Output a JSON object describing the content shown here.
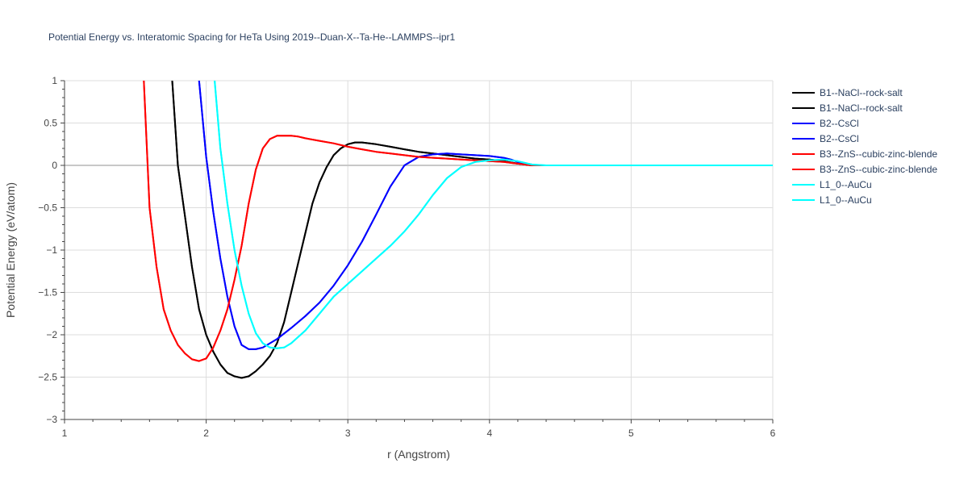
{
  "chart_data": {
    "type": "line",
    "title": "Potential Energy vs. Interatomic Spacing for HeTa Using 2019--Duan-X--Ta-He--LAMMPS--ipr1",
    "xlabel": "r (Angstrom)",
    "ylabel": "Potential Energy (eV/atom)",
    "xlim": [
      1,
      6
    ],
    "ylim": [
      -3,
      1
    ],
    "x_ticks": [
      1,
      2,
      3,
      4,
      5,
      6
    ],
    "x_tick_labels": [
      "1",
      "2",
      "3",
      "4",
      "5",
      "6"
    ],
    "y_ticks": [
      -3,
      -2.5,
      -2,
      -1.5,
      -1,
      -0.5,
      0,
      0.5,
      1
    ],
    "y_tick_labels": [
      "−3",
      "−2.5",
      "−2",
      "−1.5",
      "−1",
      "−0.5",
      "0",
      "0.5",
      "1"
    ],
    "grid": true,
    "legend_position": "top-right",
    "series": [
      {
        "name": "B1--NaCl--rock-salt",
        "color": "#000000",
        "x": [
          1.76,
          1.8,
          1.85,
          1.9,
          1.95,
          2.0,
          2.05,
          2.1,
          2.15,
          2.2,
          2.25,
          2.3,
          2.35,
          2.4,
          2.45,
          2.5,
          2.55,
          2.6,
          2.65,
          2.7,
          2.75,
          2.8,
          2.85,
          2.9,
          2.95,
          3.0,
          3.05,
          3.1,
          3.2,
          3.3,
          3.4,
          3.5,
          3.6,
          3.7,
          3.8,
          3.9,
          4.0,
          4.1,
          4.2,
          4.3,
          4.4,
          5.0,
          6.0
        ],
        "y": [
          1.0,
          0.0,
          -0.6,
          -1.2,
          -1.7,
          -2.0,
          -2.2,
          -2.35,
          -2.45,
          -2.49,
          -2.51,
          -2.49,
          -2.43,
          -2.35,
          -2.25,
          -2.1,
          -1.85,
          -1.5,
          -1.15,
          -0.8,
          -0.45,
          -0.2,
          -0.02,
          0.12,
          0.2,
          0.25,
          0.27,
          0.27,
          0.25,
          0.22,
          0.19,
          0.16,
          0.14,
          0.12,
          0.1,
          0.08,
          0.07,
          0.05,
          0.02,
          0.0,
          0.0,
          0.0,
          0.0
        ]
      },
      {
        "name": "B1--NaCl--rock-salt",
        "color": "#000000",
        "x": [
          1.76,
          1.8,
          1.85,
          1.9,
          1.95,
          2.0,
          2.05,
          2.1,
          2.15,
          2.2,
          2.25,
          2.3,
          2.35,
          2.4,
          2.45,
          2.5,
          2.55,
          2.6,
          2.65,
          2.7,
          2.75,
          2.8,
          2.85,
          2.9,
          2.95,
          3.0,
          3.05,
          3.1,
          3.2,
          3.3,
          3.4,
          3.5,
          3.6,
          3.7,
          3.8,
          3.9,
          4.0,
          4.1,
          4.2,
          4.3,
          4.4,
          5.0,
          6.0
        ],
        "y": [
          1.0,
          0.0,
          -0.6,
          -1.2,
          -1.7,
          -2.0,
          -2.2,
          -2.35,
          -2.45,
          -2.49,
          -2.51,
          -2.49,
          -2.43,
          -2.35,
          -2.25,
          -2.1,
          -1.85,
          -1.5,
          -1.15,
          -0.8,
          -0.45,
          -0.2,
          -0.02,
          0.12,
          0.2,
          0.25,
          0.27,
          0.27,
          0.25,
          0.22,
          0.19,
          0.16,
          0.14,
          0.12,
          0.1,
          0.08,
          0.07,
          0.05,
          0.02,
          0.0,
          0.0,
          0.0,
          0.0
        ]
      },
      {
        "name": "B2--CsCl",
        "color": "#0000ff",
        "x": [
          1.95,
          2.0,
          2.05,
          2.1,
          2.15,
          2.2,
          2.25,
          2.3,
          2.35,
          2.4,
          2.5,
          2.6,
          2.7,
          2.8,
          2.9,
          3.0,
          3.1,
          3.2,
          3.3,
          3.4,
          3.5,
          3.6,
          3.7,
          3.8,
          3.9,
          4.0,
          4.1,
          4.15,
          4.2,
          4.25,
          4.3,
          4.35,
          4.4,
          5.0,
          6.0
        ],
        "y": [
          1.0,
          0.1,
          -0.55,
          -1.1,
          -1.55,
          -1.9,
          -2.12,
          -2.17,
          -2.17,
          -2.15,
          -2.05,
          -1.92,
          -1.78,
          -1.62,
          -1.42,
          -1.18,
          -0.9,
          -0.58,
          -0.25,
          0.0,
          0.1,
          0.13,
          0.14,
          0.13,
          0.12,
          0.11,
          0.09,
          0.07,
          0.04,
          0.02,
          0.01,
          0.0,
          0.0,
          0.0,
          0.0
        ]
      },
      {
        "name": "B2--CsCl",
        "color": "#0000ff",
        "x": [
          1.95,
          2.0,
          2.05,
          2.1,
          2.15,
          2.2,
          2.25,
          2.3,
          2.35,
          2.4,
          2.5,
          2.6,
          2.7,
          2.8,
          2.9,
          3.0,
          3.1,
          3.2,
          3.3,
          3.4,
          3.5,
          3.6,
          3.7,
          3.8,
          3.9,
          4.0,
          4.1,
          4.15,
          4.2,
          4.25,
          4.3,
          4.35,
          4.4,
          5.0,
          6.0
        ],
        "y": [
          1.0,
          0.1,
          -0.55,
          -1.1,
          -1.55,
          -1.9,
          -2.12,
          -2.17,
          -2.17,
          -2.15,
          -2.05,
          -1.92,
          -1.78,
          -1.62,
          -1.42,
          -1.18,
          -0.9,
          -0.58,
          -0.25,
          0.0,
          0.1,
          0.13,
          0.14,
          0.13,
          0.12,
          0.11,
          0.09,
          0.07,
          0.04,
          0.02,
          0.01,
          0.0,
          0.0,
          0.0,
          0.0
        ]
      },
      {
        "name": "B3--ZnS--cubic-zinc-blende",
        "color": "#ff0000",
        "x": [
          1.56,
          1.6,
          1.65,
          1.7,
          1.75,
          1.8,
          1.85,
          1.9,
          1.95,
          2.0,
          2.05,
          2.1,
          2.15,
          2.2,
          2.25,
          2.3,
          2.35,
          2.4,
          2.45,
          2.5,
          2.55,
          2.6,
          2.65,
          2.7,
          2.8,
          2.9,
          3.0,
          3.1,
          3.2,
          3.3,
          3.4,
          3.5,
          3.6,
          3.7,
          3.8,
          3.9,
          4.0,
          4.1,
          4.2,
          4.3,
          4.4,
          5.0,
          6.0
        ],
        "y": [
          1.0,
          -0.5,
          -1.2,
          -1.7,
          -1.95,
          -2.12,
          -2.22,
          -2.29,
          -2.31,
          -2.28,
          -2.15,
          -1.95,
          -1.7,
          -1.35,
          -0.95,
          -0.45,
          -0.05,
          0.2,
          0.31,
          0.35,
          0.35,
          0.35,
          0.34,
          0.32,
          0.29,
          0.26,
          0.22,
          0.19,
          0.16,
          0.14,
          0.12,
          0.1,
          0.09,
          0.08,
          0.07,
          0.06,
          0.05,
          0.04,
          0.02,
          0.0,
          0.0,
          0.0,
          0.0
        ]
      },
      {
        "name": "B3--ZnS--cubic-zinc-blende",
        "color": "#ff0000",
        "x": [
          1.56,
          1.6,
          1.65,
          1.7,
          1.75,
          1.8,
          1.85,
          1.9,
          1.95,
          2.0,
          2.05,
          2.1,
          2.15,
          2.2,
          2.25,
          2.3,
          2.35,
          2.4,
          2.45,
          2.5,
          2.55,
          2.6,
          2.65,
          2.7,
          2.8,
          2.9,
          3.0,
          3.1,
          3.2,
          3.3,
          3.4,
          3.5,
          3.6,
          3.7,
          3.8,
          3.9,
          4.0,
          4.1,
          4.2,
          4.3,
          4.4,
          5.0,
          6.0
        ],
        "y": [
          1.0,
          -0.5,
          -1.2,
          -1.7,
          -1.95,
          -2.12,
          -2.22,
          -2.29,
          -2.31,
          -2.28,
          -2.15,
          -1.95,
          -1.7,
          -1.35,
          -0.95,
          -0.45,
          -0.05,
          0.2,
          0.31,
          0.35,
          0.35,
          0.35,
          0.34,
          0.32,
          0.29,
          0.26,
          0.22,
          0.19,
          0.16,
          0.14,
          0.12,
          0.1,
          0.09,
          0.08,
          0.07,
          0.06,
          0.05,
          0.04,
          0.02,
          0.0,
          0.0,
          0.0,
          0.0
        ]
      },
      {
        "name": "L1_0--AuCu",
        "color": "#00ffff",
        "x": [
          2.06,
          2.1,
          2.15,
          2.2,
          2.25,
          2.3,
          2.35,
          2.4,
          2.45,
          2.5,
          2.55,
          2.6,
          2.7,
          2.8,
          2.9,
          3.0,
          3.1,
          3.2,
          3.3,
          3.4,
          3.5,
          3.6,
          3.7,
          3.8,
          3.9,
          4.0,
          4.1,
          4.2,
          4.3,
          4.4,
          5.0,
          6.0
        ],
        "y": [
          1.0,
          0.2,
          -0.45,
          -1.0,
          -1.42,
          -1.75,
          -1.98,
          -2.1,
          -2.15,
          -2.16,
          -2.15,
          -2.1,
          -1.95,
          -1.75,
          -1.55,
          -1.4,
          -1.25,
          -1.1,
          -0.95,
          -0.78,
          -0.58,
          -0.35,
          -0.15,
          -0.02,
          0.04,
          0.06,
          0.07,
          0.05,
          0.01,
          0.0,
          0.0,
          0.0
        ]
      },
      {
        "name": "L1_0--AuCu",
        "color": "#00ffff",
        "x": [
          2.06,
          2.1,
          2.15,
          2.2,
          2.25,
          2.3,
          2.35,
          2.4,
          2.45,
          2.5,
          2.55,
          2.6,
          2.7,
          2.8,
          2.9,
          3.0,
          3.1,
          3.2,
          3.3,
          3.4,
          3.5,
          3.6,
          3.7,
          3.8,
          3.9,
          4.0,
          4.1,
          4.2,
          4.3,
          4.4,
          5.0,
          6.0
        ],
        "y": [
          1.0,
          0.2,
          -0.45,
          -1.0,
          -1.42,
          -1.75,
          -1.98,
          -2.1,
          -2.15,
          -2.16,
          -2.15,
          -2.1,
          -1.95,
          -1.75,
          -1.55,
          -1.4,
          -1.25,
          -1.1,
          -0.95,
          -0.78,
          -0.58,
          -0.35,
          -0.15,
          -0.02,
          0.04,
          0.06,
          0.07,
          0.05,
          0.01,
          0.0,
          0.0,
          0.0
        ]
      }
    ]
  }
}
